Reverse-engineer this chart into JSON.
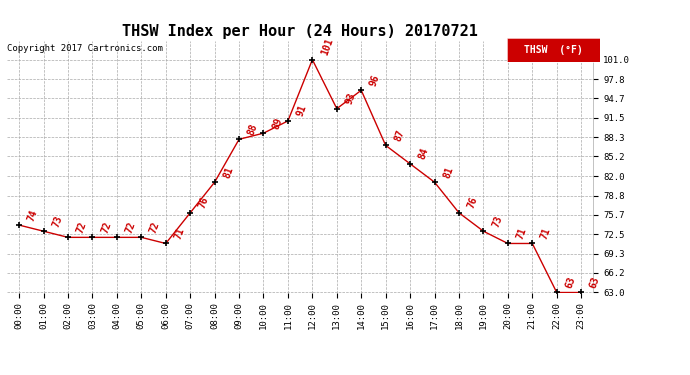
{
  "title": "THSW Index per Hour (24 Hours) 20170721",
  "copyright": "Copyright 2017 Cartronics.com",
  "legend_label": "THSW  (°F)",
  "hours": [
    0,
    1,
    2,
    3,
    4,
    5,
    6,
    7,
    8,
    9,
    10,
    11,
    12,
    13,
    14,
    15,
    16,
    17,
    18,
    19,
    20,
    21,
    22,
    23
  ],
  "values": [
    74,
    73,
    72,
    72,
    72,
    72,
    71,
    76,
    81,
    88,
    89,
    91,
    101,
    93,
    96,
    87,
    84,
    81,
    76,
    73,
    71,
    71,
    63,
    63
  ],
  "line_color": "#cc0000",
  "marker_color": "#000000",
  "label_color": "#cc0000",
  "bg_color": "#ffffff",
  "grid_color": "#aaaaaa",
  "ylim_min": 63.0,
  "ylim_max": 104.0,
  "ytick_values": [
    63.0,
    66.2,
    69.3,
    72.5,
    75.7,
    78.8,
    82.0,
    85.2,
    88.3,
    91.5,
    94.7,
    97.8,
    101.0
  ],
  "ytick_labels": [
    "63.0",
    "66.2",
    "69.3",
    "72.5",
    "75.7",
    "78.8",
    "82.0",
    "85.2",
    "88.3",
    "91.5",
    "94.7",
    "97.8",
    "101.0"
  ],
  "title_fontsize": 11,
  "axis_fontsize": 6.5,
  "label_fontsize": 7,
  "copyright_fontsize": 6.5
}
